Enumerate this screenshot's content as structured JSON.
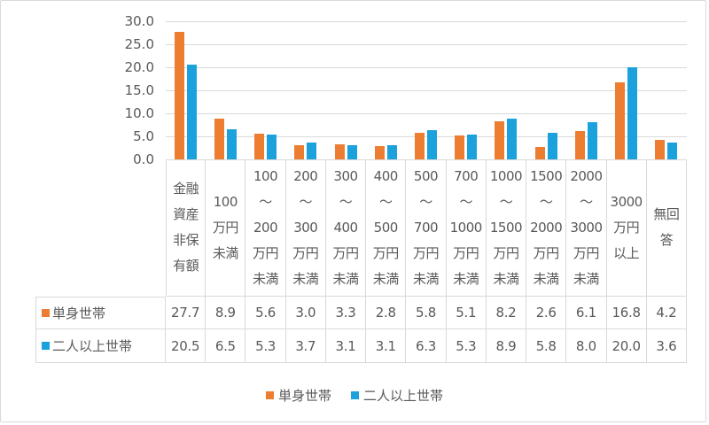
{
  "chart_data": {
    "type": "bar",
    "title": "",
    "xlabel": "",
    "ylabel": "",
    "ylim": [
      0,
      30
    ],
    "yticks": [
      "30.0",
      "25.0",
      "20.0",
      "15.0",
      "10.0",
      "5.0",
      "0.0"
    ],
    "grid": true,
    "legend_position": "bottom",
    "data_table": true,
    "categories": [
      "金融\n資産\n非保\n有額",
      "100\n万円\n未満",
      "100\n〜\n200\n万円\n未満",
      "200\n〜\n300\n万円\n未満",
      "300\n〜\n400\n万円\n未満",
      "400\n〜\n500\n万円\n未満",
      "500\n〜\n700\n万円\n未満",
      "700\n〜\n1000\n万円\n未満",
      "1000\n〜\n1500\n万円\n未満",
      "1500\n〜\n2000\n万円\n未満",
      "2000\n〜\n3000\n万円\n未満",
      "3000\n万円\n以上",
      "無回\n答"
    ],
    "series": [
      {
        "name": "単身世帯",
        "color": "#ed7d31",
        "values": [
          27.7,
          8.9,
          5.6,
          3.0,
          3.3,
          2.8,
          5.8,
          5.1,
          8.2,
          2.6,
          6.1,
          16.8,
          4.2
        ],
        "labels": [
          "27.7",
          "8.9",
          "5.6",
          "3.0",
          "3.3",
          "2.8",
          "5.8",
          "5.1",
          "8.2",
          "2.6",
          "6.1",
          "16.8",
          "4.2"
        ]
      },
      {
        "name": "二人以上世帯",
        "color": "#1ba1dc",
        "values": [
          20.5,
          6.5,
          5.3,
          3.7,
          3.1,
          3.1,
          6.3,
          5.3,
          8.9,
          5.8,
          8.0,
          20.0,
          3.6
        ],
        "labels": [
          "20.5",
          "6.5",
          "5.3",
          "3.7",
          "3.1",
          "3.1",
          "6.3",
          "5.3",
          "8.9",
          "5.8",
          "8.0",
          "20.0",
          "3.6"
        ]
      }
    ]
  },
  "legend": {
    "items": [
      {
        "label": "単身世帯",
        "color": "#ed7d31"
      },
      {
        "label": "二人以上世帯",
        "color": "#1ba1dc"
      }
    ]
  }
}
